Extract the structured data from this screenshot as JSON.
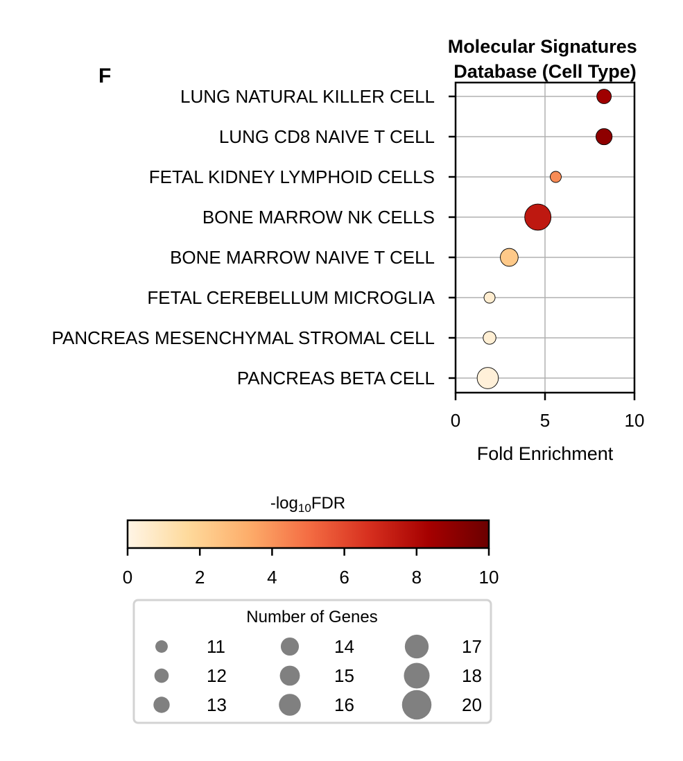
{
  "panel_label": "F",
  "chart_data": {
    "type": "scatter",
    "title": "Molecular Signatures\nDatabase (Cell Type)",
    "xlabel": "Fold Enrichment",
    "ylabel": "",
    "xlim": [
      0,
      10
    ],
    "xticks": [
      0,
      5,
      10
    ],
    "grid": true,
    "categories": [
      "LUNG NATURAL KILLER CELL",
      "LUNG CD8 NAIVE T CELL",
      "FETAL KIDNEY LYMPHOID CELLS",
      "BONE MARROW NK CELLS",
      "BONE MARROW NAIVE T CELL",
      "FETAL CEREBELLUM MICROGLIA",
      "PANCREAS MESENCHYMAL STROMAL CELL",
      "PANCREAS BETA CELL"
    ],
    "points": [
      {
        "category": "LUNG NATURAL KILLER CELL",
        "fold_enrichment": 8.3,
        "neg_log10_fdr": 8.5,
        "genes": 13
      },
      {
        "category": "LUNG CD8 NAIVE T CELL",
        "fold_enrichment": 8.3,
        "neg_log10_fdr": 9.0,
        "genes": 14
      },
      {
        "category": "FETAL KIDNEY LYMPHOID CELLS",
        "fold_enrichment": 5.6,
        "neg_log10_fdr": 4.2,
        "genes": 11
      },
      {
        "category": "BONE MARROW NK CELLS",
        "fold_enrichment": 4.6,
        "neg_log10_fdr": 7.5,
        "genes": 20
      },
      {
        "category": "BONE MARROW NAIVE T CELL",
        "fold_enrichment": 3.0,
        "neg_log10_fdr": 2.3,
        "genes": 15
      },
      {
        "category": "FETAL CEREBELLUM MICROGLIA",
        "fold_enrichment": 1.9,
        "neg_log10_fdr": 0.5,
        "genes": 11
      },
      {
        "category": "PANCREAS MESENCHYMAL STROMAL CELL",
        "fold_enrichment": 1.9,
        "neg_log10_fdr": 0.4,
        "genes": 12
      },
      {
        "category": "PANCREAS BETA CELL",
        "fold_enrichment": 1.8,
        "neg_log10_fdr": 0.3,
        "genes": 17
      }
    ],
    "colorbar": {
      "label_prefix": "-log",
      "label_subscript": "10",
      "label_suffix": "FDR",
      "range": [
        0,
        10
      ],
      "ticks": [
        0,
        2,
        4,
        6,
        8,
        10
      ],
      "colormap": [
        "#fff5e6",
        "#feda9c",
        "#fdae6b",
        "#f46d43",
        "#d7301f",
        "#a50000",
        "#6b0000"
      ]
    },
    "size_legend": {
      "title": "Number of Genes",
      "entries": [
        11,
        12,
        13,
        14,
        15,
        16,
        17,
        18,
        20
      ]
    },
    "marker_legend_color": "#808080"
  }
}
